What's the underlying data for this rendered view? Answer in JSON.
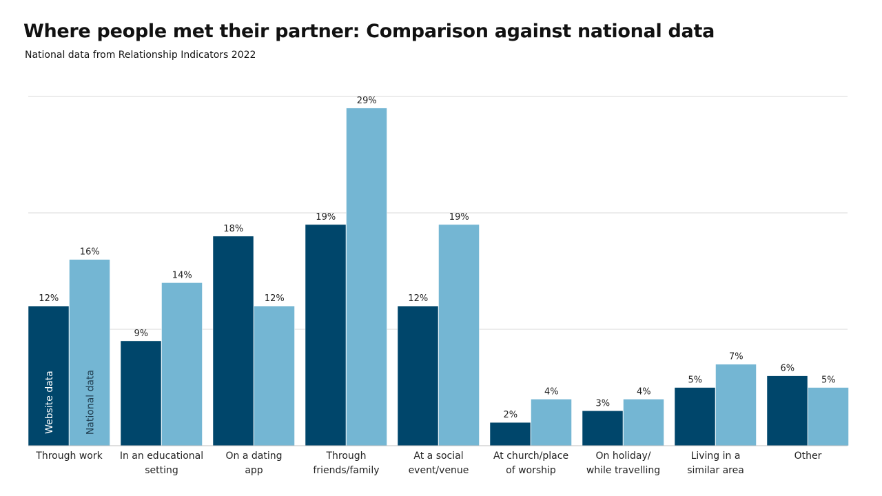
{
  "chart_data": {
    "type": "bar",
    "title": "Where people met their partner: Comparison against national data",
    "subtitle": "National data from Relationship Indicators 2022",
    "categories": [
      [
        "Through work"
      ],
      [
        "In an educational",
        "setting"
      ],
      [
        "On a dating",
        "app"
      ],
      [
        "Through",
        "friends/family"
      ],
      [
        "At a social",
        "event/venue"
      ],
      [
        "At church/place",
        "of worship"
      ],
      [
        "On holiday/",
        "while travelling"
      ],
      [
        "Living in a",
        "similar area"
      ],
      [
        "Other"
      ]
    ],
    "series": [
      {
        "name": "Website data",
        "color": "#00466B",
        "values": [
          12,
          9,
          18,
          19,
          12,
          2,
          3,
          5,
          6
        ]
      },
      {
        "name": "National data",
        "color": "#74B6D3",
        "values": [
          16,
          14,
          12,
          29,
          19,
          4,
          4,
          7,
          5
        ]
      }
    ],
    "value_suffix": "%",
    "ylim": [
      0,
      30
    ],
    "grid": true,
    "legend": "inside first bars"
  }
}
